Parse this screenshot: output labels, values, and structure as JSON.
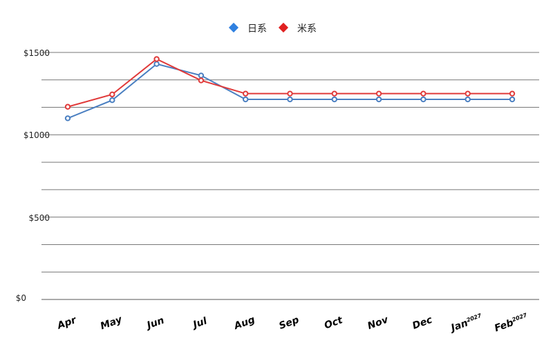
{
  "chart_data": {
    "type": "line",
    "categories": [
      "Apr",
      "May",
      "Jun",
      "Jul",
      "Aug",
      "Sep",
      "Oct",
      "Nov",
      "Dec",
      "Jan",
      "Feb"
    ],
    "category_superscripts": [
      "",
      "",
      "",
      "",
      "",
      "",
      "",
      "",
      "",
      "2027",
      "2027"
    ],
    "y_ticks": [
      "$0",
      "$500",
      "$1000",
      "$1500"
    ],
    "ylim": [
      0,
      1500
    ],
    "grid": true,
    "legend_position": "top-center",
    "series": [
      {
        "name": "日系",
        "color": "#4a7fc1",
        "marker_color": "#2f80e0",
        "values": [
          1100,
          1210,
          1430,
          1360,
          1215,
          1215,
          1215,
          1215,
          1215,
          1215,
          1215
        ]
      },
      {
        "name": "米系",
        "color": "#e03a3a",
        "marker_color": "#e02020",
        "values": [
          1170,
          1245,
          1460,
          1330,
          1250,
          1250,
          1250,
          1250,
          1250,
          1250,
          1250
        ]
      }
    ]
  }
}
